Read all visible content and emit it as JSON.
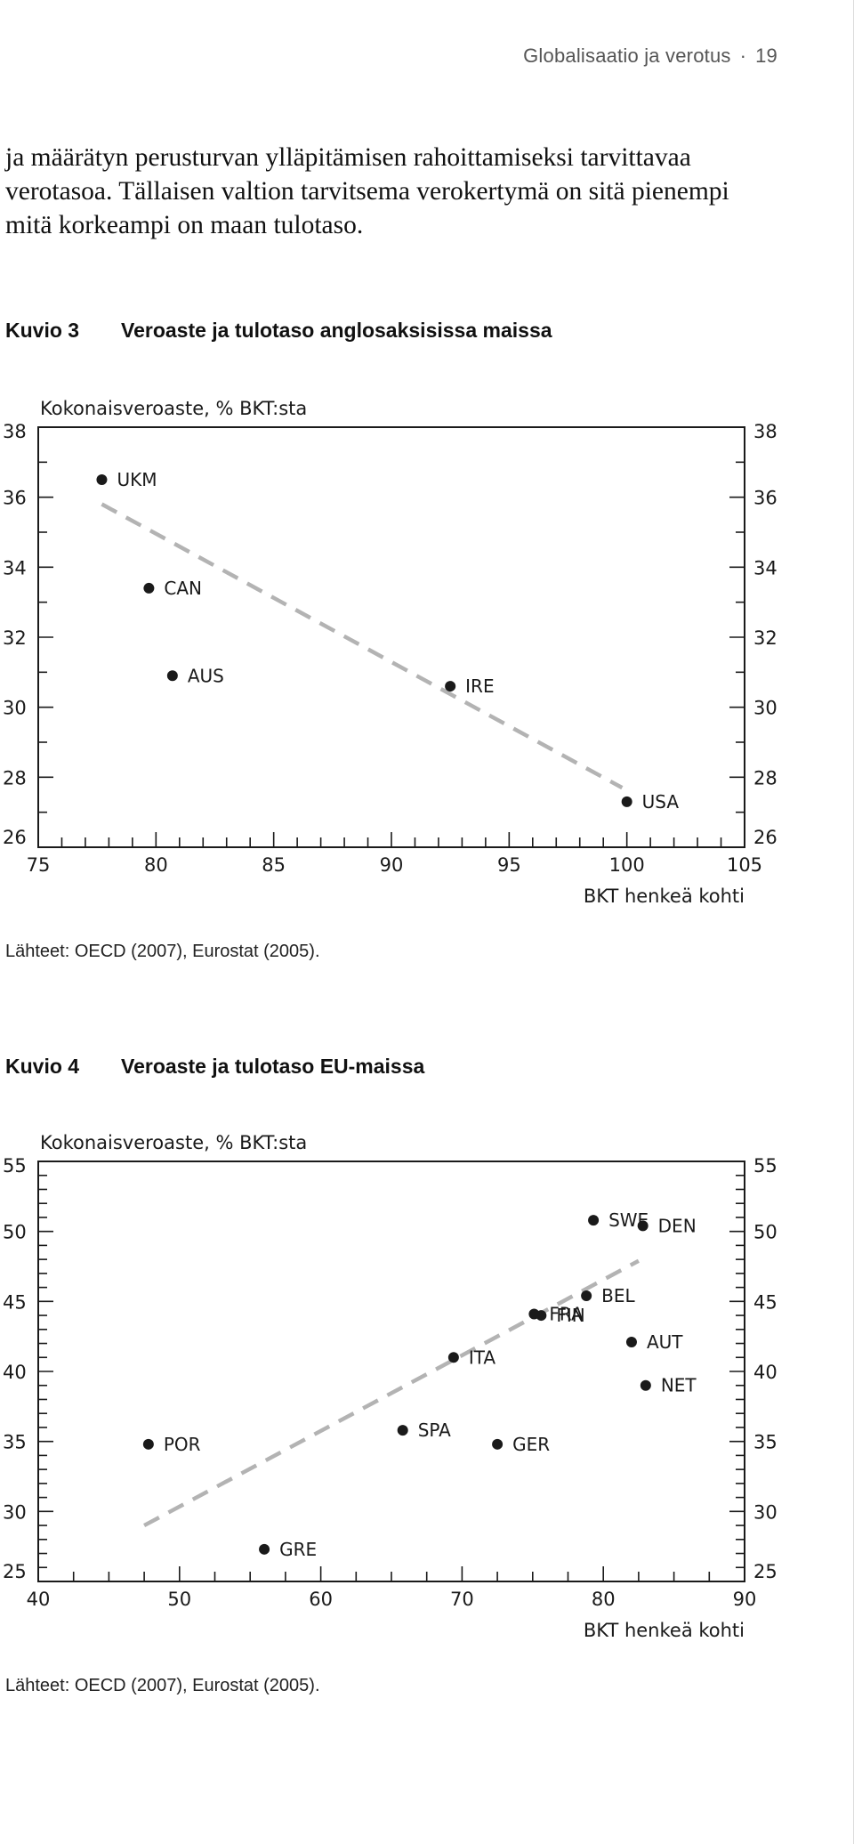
{
  "page": {
    "running_title": "Globalisaatio ja verotus",
    "page_number": "19",
    "intro_lines": [
      "ja määrätyn perusturvan ylläpitämisen rahoittamiseksi tarvittavaa",
      "verotasoa. Tällaisen valtion tarvitsema verokertymä on sitä pienempi",
      "mitä korkeampi on maan tulotaso."
    ]
  },
  "figures": [
    {
      "number": "Kuvio 3",
      "title": "Veroaste ja tulotaso anglosaksisissa maissa",
      "source": "Lähteet: OECD (2007), Eurostat (2005)."
    },
    {
      "number": "Kuvio 4",
      "title": "Veroaste ja tulotaso EU-maissa",
      "source": "Lähteet: OECD (2007), Eurostat (2005)."
    }
  ],
  "chart_data": [
    {
      "type": "scatter",
      "title": "Veroaste ja tulotaso anglosaksisissa maissa",
      "ylabel": "Kokonaisveroaste, % BKT:sta",
      "xlabel": "BKT henkeä kohti",
      "xlim": [
        75,
        105
      ],
      "ylim": [
        26,
        38
      ],
      "x_ticks": [
        75,
        80,
        85,
        90,
        95,
        100,
        105
      ],
      "y_ticks": [
        26,
        28,
        30,
        32,
        34,
        36,
        38
      ],
      "x_minor_step": 1,
      "y_minor_step": 1,
      "grid": false,
      "point_color": "#1a1a1a",
      "trend_color": "#b3b3b3",
      "points": [
        {
          "label": "UKM",
          "x": 77.7,
          "y": 36.5
        },
        {
          "label": "CAN",
          "x": 79.7,
          "y": 33.4
        },
        {
          "label": "AUS",
          "x": 80.7,
          "y": 30.9
        },
        {
          "label": "IRE",
          "x": 92.5,
          "y": 30.6
        },
        {
          "label": "USA",
          "x": 100,
          "y": 27.3
        }
      ],
      "trend_line": [
        {
          "x": 77.7,
          "y": 35.8
        },
        {
          "x": 99.8,
          "y": 27.7
        }
      ]
    },
    {
      "type": "scatter",
      "title": "Veroaste ja tulotaso EU-maissa",
      "ylabel": "Kokonaisveroaste, % BKT:sta",
      "xlabel": "BKT henkeä kohti",
      "xlim": [
        40,
        90
      ],
      "ylim": [
        25,
        55
      ],
      "x_ticks": [
        40,
        50,
        60,
        70,
        80,
        90
      ],
      "y_ticks": [
        25,
        30,
        35,
        40,
        45,
        50,
        55
      ],
      "x_minor_step": 2.5,
      "y_minor_step": 1,
      "grid": false,
      "point_color": "#1a1a1a",
      "trend_color": "#b3b3b3",
      "points": [
        {
          "label": "SWE",
          "x": 79.3,
          "y": 50.8
        },
        {
          "label": "DEN",
          "x": 82.8,
          "y": 50.4
        },
        {
          "label": "BEL",
          "x": 78.8,
          "y": 45.4
        },
        {
          "label": "FRA",
          "x": 75.1,
          "y": 44.1
        },
        {
          "label": "FIN",
          "x": 75.6,
          "y": 44.0
        },
        {
          "label": "AUT",
          "x": 82.0,
          "y": 42.1
        },
        {
          "label": "ITA",
          "x": 69.4,
          "y": 41.0
        },
        {
          "label": "NET",
          "x": 83.0,
          "y": 39.0
        },
        {
          "label": "POR",
          "x": 47.8,
          "y": 34.8
        },
        {
          "label": "SPA",
          "x": 65.8,
          "y": 35.8
        },
        {
          "label": "GER",
          "x": 72.5,
          "y": 34.8
        },
        {
          "label": "GRE",
          "x": 56.0,
          "y": 27.3
        }
      ],
      "trend_line": [
        {
          "x": 47.5,
          "y": 29.0
        },
        {
          "x": 82.5,
          "y": 47.9
        }
      ]
    }
  ]
}
